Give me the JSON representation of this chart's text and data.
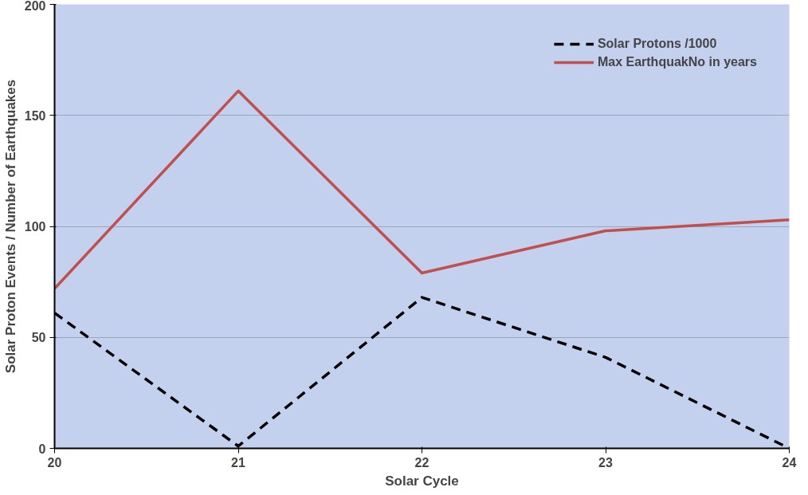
{
  "chart_data": {
    "type": "line",
    "xlabel": "Solar Cycle",
    "ylabel": "Solar Proton Events / Number of Earthquakes",
    "x": [
      20,
      21,
      22,
      23,
      24
    ],
    "xlim": [
      20,
      24
    ],
    "xticks": [
      20,
      21,
      22,
      23,
      24
    ],
    "ylim": [
      0,
      200
    ],
    "yticks": [
      0,
      50,
      100,
      150,
      200
    ],
    "grid": "y",
    "legend": "top right",
    "marker": "none",
    "series": [
      {
        "name": "Solar Protons /1000",
        "color": "#000000",
        "line_style": "dashed",
        "values": [
          61,
          1,
          68,
          41,
          0
        ]
      },
      {
        "name": "Max EarthquakNo in years",
        "color": "#c0504d",
        "line_style": "solid",
        "values": [
          72,
          161,
          79,
          98,
          103
        ]
      }
    ]
  }
}
